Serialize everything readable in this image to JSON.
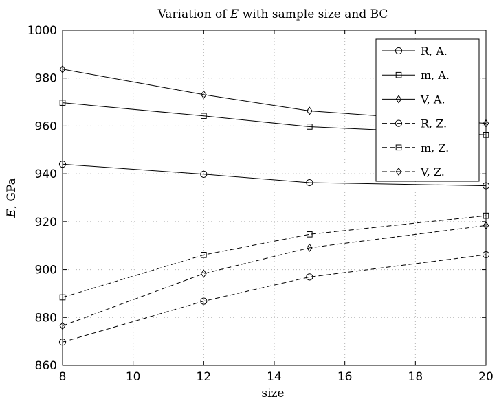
{
  "chart_data": {
    "type": "line",
    "title_prefix": "Variation of ",
    "title_symbol": "E",
    "title_suffix": " with sample size and BC",
    "xlabel": "size",
    "ylabel_symbol": "E",
    "ylabel_suffix": ", GPa",
    "xlim": [
      8,
      20
    ],
    "ylim": [
      860,
      1000
    ],
    "xticks": [
      8,
      10,
      12,
      14,
      16,
      18,
      20
    ],
    "yticks": [
      860,
      880,
      900,
      920,
      940,
      960,
      980,
      1000
    ],
    "grid": true,
    "legend_position": "top-right",
    "x": [
      8,
      12,
      15,
      20
    ],
    "series": [
      {
        "name": "R, A.",
        "values": [
          944,
          939.8,
          936.3,
          935
        ],
        "marker": "circle",
        "dash": "solid"
      },
      {
        "name": "m, A.",
        "values": [
          969.7,
          964.2,
          959.7,
          956.3
        ],
        "marker": "square",
        "dash": "solid"
      },
      {
        "name": "V, A.",
        "values": [
          983.7,
          973.1,
          966.3,
          961.1
        ],
        "marker": "diamond",
        "dash": "solid"
      },
      {
        "name": "R, Z.",
        "values": [
          869.7,
          886.8,
          896.9,
          906.2
        ],
        "marker": "circle",
        "dash": "dashed"
      },
      {
        "name": "m, Z.",
        "values": [
          888.4,
          906.1,
          914.7,
          922.5
        ],
        "marker": "square",
        "dash": "dashed"
      },
      {
        "name": "V, Z.",
        "values": [
          876.5,
          898.3,
          909.1,
          918.4
        ],
        "marker": "diamond",
        "dash": "dashed"
      }
    ]
  }
}
